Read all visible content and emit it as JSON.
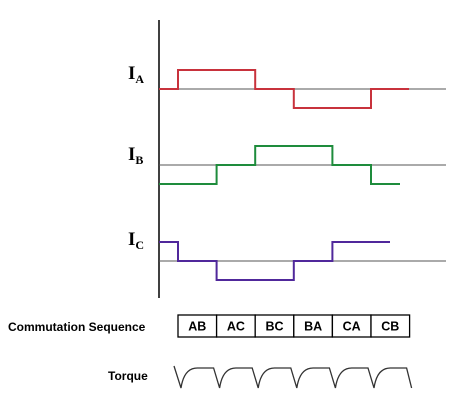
{
  "labels": {
    "ia": {
      "main": "I",
      "sub": "A"
    },
    "ib": {
      "main": "I",
      "sub": "B"
    },
    "ic": {
      "main": "I",
      "sub": "C"
    },
    "sequence_caption": "Commutation Sequence",
    "torque_caption": "Torque"
  },
  "sequence": [
    "AB",
    "AC",
    "BC",
    "BA",
    "CA",
    "CB"
  ],
  "colors": {
    "ia": "#c8323c",
    "ib": "#1e8c3c",
    "ic": "#50289b",
    "axis": "#000000",
    "baseline": "#555555",
    "torque": "#333333"
  },
  "waveforms": {
    "steps": 6,
    "ia": [
      1,
      1,
      0,
      -1,
      -1,
      0
    ],
    "ib": [
      -1,
      0,
      1,
      1,
      0,
      -1
    ],
    "ic": [
      0,
      -1,
      -1,
      0,
      1,
      1
    ]
  }
}
